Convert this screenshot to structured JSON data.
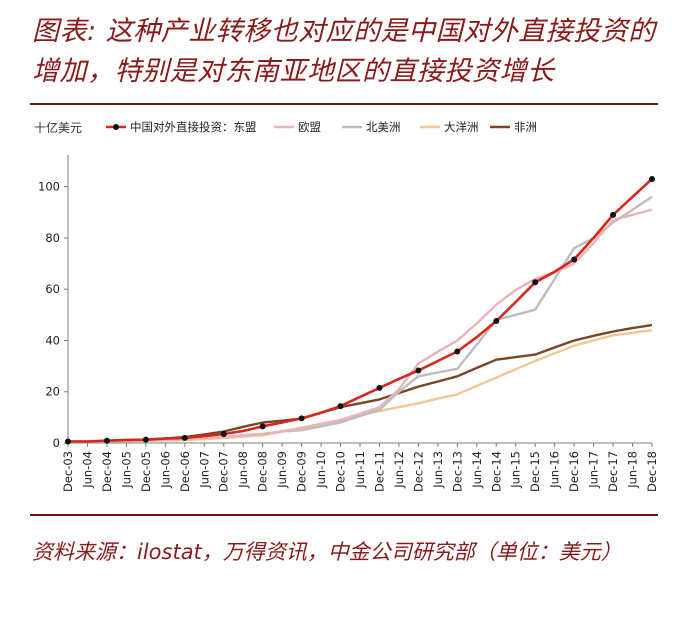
{
  "title": "图表: 这种产业转移也对应的是中国对外直接投资的增加，特别是对东南亚地区的直接投资增长",
  "source": "资料来源：ilostat，万得资讯，中金公司研究部（单位：美元）",
  "chart_data": {
    "type": "line",
    "unit_label": "十亿美元",
    "ylim": [
      0,
      110
    ],
    "yticks": [
      0,
      20,
      40,
      60,
      80,
      100
    ],
    "grid": false,
    "legend_position": "top",
    "categories": [
      "Dec-03",
      "Jun-04",
      "Dec-04",
      "Jun-05",
      "Dec-05",
      "Jun-06",
      "Dec-06",
      "Jun-07",
      "Dec-07",
      "Jun-08",
      "Dec-08",
      "Jun-09",
      "Dec-09",
      "Jun-10",
      "Dec-10",
      "Jun-11",
      "Dec-11",
      "Jun-12",
      "Dec-12",
      "Jun-13",
      "Dec-13",
      "Jun-14",
      "Dec-14",
      "Jun-15",
      "Dec-15",
      "Jun-16",
      "Dec-16",
      "Jun-17",
      "Dec-17",
      "Jun-18",
      "Dec-18"
    ],
    "series": [
      {
        "name": "中国对外直接投资：东盟",
        "color": "#d7261e",
        "markers": true,
        "values": [
          0.6,
          0.6,
          0.9,
          1.2,
          1.3,
          1.7,
          2.0,
          2.7,
          3.5,
          4.7,
          6.5,
          8.0,
          9.6,
          11.8,
          14.4,
          18.0,
          21.5,
          25.0,
          28.3,
          32.0,
          35.7,
          41.3,
          47.6,
          55.0,
          62.7,
          66.8,
          71.6,
          80.0,
          89.0,
          96.0,
          103.0
        ]
      },
      {
        "name": "欧盟",
        "color": "#e8b4b8",
        "markers": false,
        "values": [
          0.6,
          0.7,
          0.8,
          1.0,
          1.2,
          1.4,
          1.6,
          2.0,
          2.4,
          3.0,
          3.5,
          4.6,
          5.8,
          7.4,
          9.0,
          11.4,
          14.0,
          21.0,
          31.0,
          35.6,
          40.0,
          46.6,
          54.0,
          59.7,
          64.0,
          66.6,
          70.0,
          78.0,
          87.0,
          89.0,
          91.0
        ]
      },
      {
        "name": "北美洲",
        "color": "#bdbdbd",
        "markers": false,
        "values": [
          0.5,
          0.6,
          0.7,
          0.9,
          1.0,
          1.3,
          1.6,
          2.0,
          2.4,
          3.0,
          3.5,
          4.5,
          5.0,
          6.5,
          8.0,
          10.5,
          13.0,
          20.0,
          26.0,
          27.5,
          29.0,
          38.4,
          48.0,
          50.0,
          52.0,
          64.0,
          76.0,
          80.0,
          86.0,
          91.0,
          96.0
        ]
      },
      {
        "name": "大洋洲",
        "color": "#f2c795",
        "markers": false,
        "values": [
          0.5,
          0.5,
          0.6,
          0.7,
          0.8,
          1.0,
          1.1,
          1.5,
          2.0,
          2.5,
          3.0,
          4.5,
          6.0,
          7.5,
          9.0,
          10.8,
          12.5,
          14.0,
          15.5,
          17.3,
          19.0,
          22.3,
          25.5,
          28.8,
          32.0,
          35.0,
          38.0,
          40.0,
          42.0,
          43.0,
          44.0
        ]
      },
      {
        "name": "非洲",
        "color": "#7a4522",
        "markers": false,
        "values": [
          0.5,
          0.6,
          0.7,
          1.0,
          1.3,
          1.8,
          2.3,
          3.3,
          4.5,
          6.3,
          8.0,
          8.7,
          9.5,
          11.8,
          14.0,
          15.5,
          17.0,
          19.5,
          22.0,
          24.0,
          26.0,
          29.3,
          32.5,
          33.5,
          34.5,
          37.3,
          40.0,
          41.8,
          43.5,
          44.8,
          46.0
        ]
      }
    ]
  }
}
